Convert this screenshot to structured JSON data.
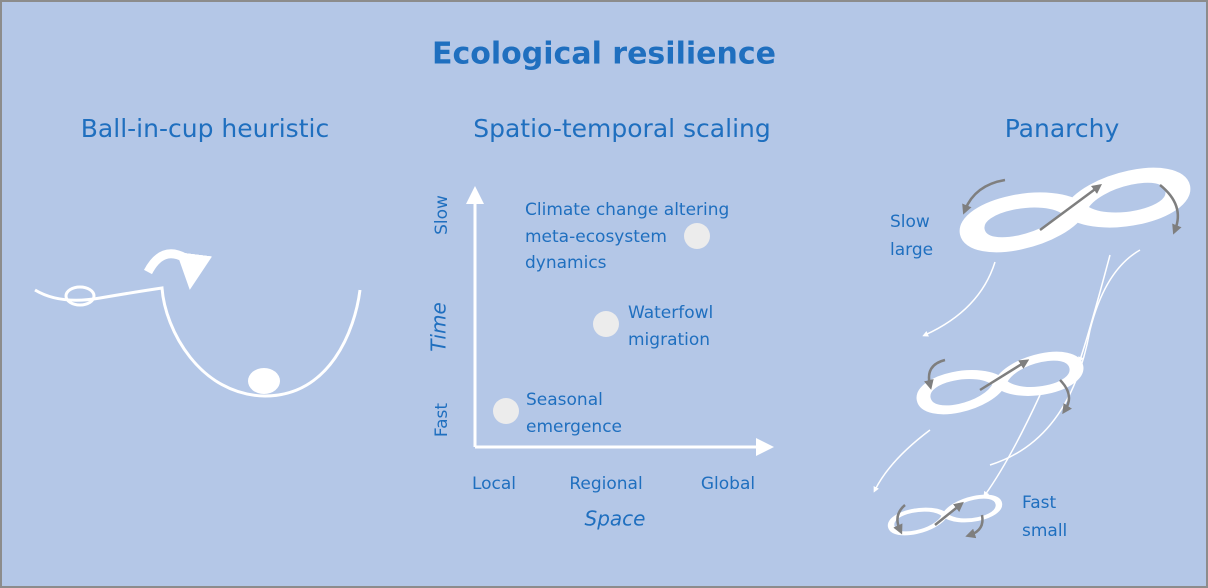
{
  "title": "Ecological resilience",
  "panels": [
    {
      "heading": "Ball-in-cup heuristic"
    },
    {
      "heading": "Spatio-temporal scaling",
      "y_axis": {
        "label": "Time",
        "low": "Fast",
        "high": "Slow"
      },
      "x_axis": {
        "label": "Space",
        "ticks": [
          "Local",
          "Regional",
          "Global"
        ]
      },
      "points": [
        {
          "label_lines": [
            "Climate change altering",
            "meta-ecosystem",
            "dynamics"
          ]
        },
        {
          "label_lines": [
            "Waterfowl",
            "migration"
          ]
        },
        {
          "label_lines": [
            "Seasonal",
            "emergence"
          ]
        }
      ]
    },
    {
      "heading": "Panarchy",
      "levels": [
        {
          "label_lines": [
            "Slow",
            "large"
          ]
        },
        {
          "label_lines": [
            "Fast",
            "small"
          ]
        }
      ]
    }
  ]
}
